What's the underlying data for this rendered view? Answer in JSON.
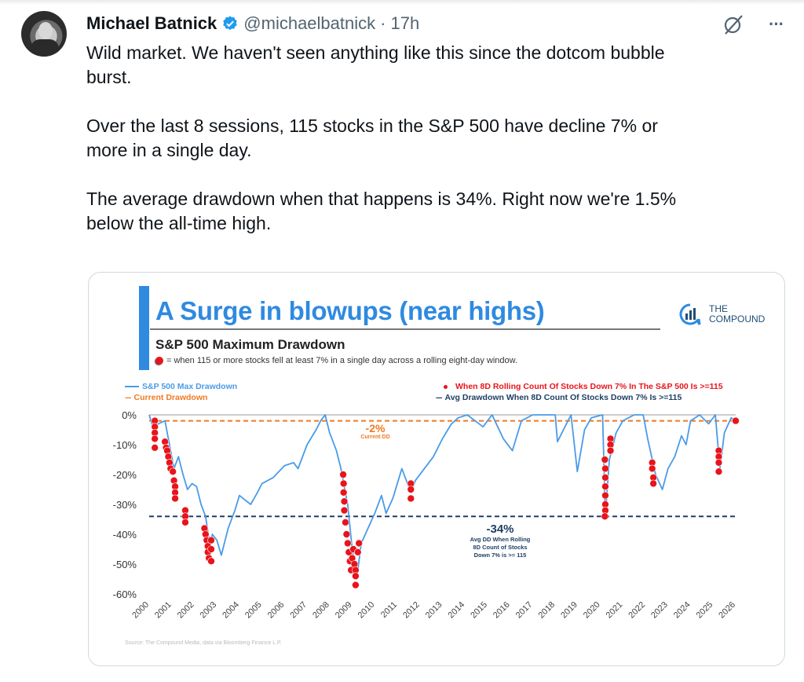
{
  "tweet": {
    "author_name": "Michael Batnick",
    "handle": "@michaelbatnick",
    "separator": "·",
    "time": "17h",
    "paragraphs": [
      [
        "Wild market. We haven't seen anything like this since the dotcom bubble",
        "burst."
      ],
      [
        "Over the last 8 sessions, 115 stocks in the S&P 500 have decline 7% or",
        "more in a single day."
      ],
      [
        "The average drawdown when that happens is 34%. Right now we're 1.5%",
        "below the all-time high."
      ]
    ],
    "icons": {
      "verified": "verified-badge-icon",
      "grok": "grok-icon",
      "more": "more-icon"
    },
    "more_label": "···"
  },
  "image": {
    "title": "A Surge in blowups (near highs)",
    "logo": {
      "line1": "THE",
      "line2": "COMPOUND"
    },
    "subtitle": "S&P 500 Maximum Drawdown",
    "note": "= when 115 or more stocks fell at least 7% in a single day across a rolling eight-day window.",
    "source": "Source: The Compound Media, data via Bloomberg Finance L.P."
  },
  "chart_data": {
    "type": "line",
    "title": "S&P 500 Maximum Drawdown",
    "ylim": [
      -60,
      0
    ],
    "xlim": [
      2000,
      2026
    ],
    "yticks": [
      "0%",
      "-10%",
      "-20%",
      "-30%",
      "-40%",
      "-50%",
      "-60%"
    ],
    "ytick_values": [
      0,
      -10,
      -20,
      -30,
      -40,
      -50,
      -60
    ],
    "xticks": [
      "2000",
      "2001",
      "2002",
      "2003",
      "2004",
      "2005",
      "2006",
      "2007",
      "2008",
      "2009",
      "2010",
      "2011",
      "2012",
      "2013",
      "2014",
      "2015",
      "2016",
      "2017",
      "2018",
      "2019",
      "2020",
      "2021",
      "2022",
      "2023",
      "2024",
      "2025",
      "2026"
    ],
    "legend": {
      "line": "S&P 500 Max Drawdown",
      "current": "Current Drawdown",
      "dots": "When 8D Rolling Count Of Stocks Down 7% In The S&P 500 Is >=115",
      "avg": "Avg Drawdown When 8D Count Of Stocks Down 7% Is >=115"
    },
    "colors": {
      "line": "#4a9be8",
      "current": "#f07a22",
      "avg": "#1f3f64",
      "dots": "#e8141b"
    },
    "series": {
      "x": [
        2000.0,
        2000.2,
        2000.4,
        2000.7,
        2000.9,
        2001.1,
        2001.3,
        2001.5,
        2001.7,
        2001.9,
        2002.1,
        2002.3,
        2002.5,
        2002.7,
        2002.8,
        2003.0,
        2003.2,
        2003.5,
        2003.8,
        2004.0,
        2004.5,
        2004.8,
        2005.0,
        2005.5,
        2006.0,
        2006.4,
        2006.6,
        2007.0,
        2007.4,
        2007.6,
        2007.8,
        2008.0,
        2008.3,
        2008.5,
        2008.8,
        2009.0,
        2009.2,
        2009.4,
        2009.7,
        2010.0,
        2010.3,
        2010.5,
        2010.8,
        2011.2,
        2011.6,
        2011.8,
        2012.3,
        2012.6,
        2013.0,
        2013.4,
        2013.7,
        2014.1,
        2014.8,
        2015.2,
        2015.7,
        2016.1,
        2016.5,
        2017.0,
        2017.5,
        2018.0,
        2018.1,
        2018.5,
        2018.7,
        2018.98,
        2019.3,
        2019.6,
        2020.1,
        2020.22,
        2020.4,
        2020.7,
        2021.0,
        2021.5,
        2021.9,
        2022.1,
        2022.45,
        2022.75,
        2023.0,
        2023.3,
        2023.6,
        2023.8,
        2024.0,
        2024.4,
        2024.8,
        2025.1,
        2025.3,
        2025.5,
        2025.8,
        2026.0
      ],
      "y": [
        0,
        -5,
        -3,
        -2,
        -10,
        -18,
        -14,
        -20,
        -25,
        -23,
        -24,
        -30,
        -34,
        -44,
        -40,
        -42,
        -47,
        -38,
        -32,
        -27,
        -30,
        -26,
        -23,
        -21,
        -17,
        -16,
        -18,
        -10,
        -5,
        -2,
        0,
        -6,
        -12,
        -18,
        -30,
        -45,
        -55,
        -43,
        -38,
        -33,
        -27,
        -33,
        -28,
        -18,
        -26,
        -22,
        -17,
        -14,
        -8,
        -3,
        -1,
        0,
        -4,
        0,
        -8,
        -12,
        -2,
        0,
        0,
        0,
        -9,
        -3,
        0,
        -19,
        -5,
        -1,
        0,
        -34,
        -15,
        -6,
        -2,
        0,
        0,
        -8,
        -20,
        -25,
        -18,
        -14,
        -7,
        -10,
        -2,
        0,
        -3,
        0,
        -18,
        -6,
        -1,
        -2
      ]
    },
    "dots": [
      [
        2000.25,
        -2
      ],
      [
        2000.25,
        -4
      ],
      [
        2000.25,
        -6
      ],
      [
        2000.25,
        -8
      ],
      [
        2000.25,
        -11
      ],
      [
        2000.7,
        -9
      ],
      [
        2000.75,
        -11
      ],
      [
        2000.8,
        -12
      ],
      [
        2000.85,
        -14
      ],
      [
        2000.9,
        -16
      ],
      [
        2000.95,
        -18
      ],
      [
        2001.05,
        -19
      ],
      [
        2001.1,
        -22
      ],
      [
        2001.15,
        -24
      ],
      [
        2001.15,
        -26
      ],
      [
        2001.15,
        -28
      ],
      [
        2001.6,
        -32
      ],
      [
        2001.6,
        -34
      ],
      [
        2001.6,
        -36
      ],
      [
        2002.45,
        -38
      ],
      [
        2002.5,
        -40
      ],
      [
        2002.55,
        -42
      ],
      [
        2002.6,
        -44
      ],
      [
        2002.6,
        -46
      ],
      [
        2002.65,
        -48
      ],
      [
        2002.75,
        -42
      ],
      [
        2002.75,
        -45
      ],
      [
        2002.75,
        -49
      ],
      [
        2008.6,
        -20
      ],
      [
        2008.62,
        -23
      ],
      [
        2008.62,
        -26
      ],
      [
        2008.65,
        -29
      ],
      [
        2008.65,
        -32
      ],
      [
        2008.7,
        -36
      ],
      [
        2008.75,
        -40
      ],
      [
        2008.8,
        -43
      ],
      [
        2008.85,
        -46
      ],
      [
        2008.9,
        -49
      ],
      [
        2008.95,
        -52
      ],
      [
        2009.0,
        -48
      ],
      [
        2009.05,
        -45
      ],
      [
        2009.1,
        -50
      ],
      [
        2009.15,
        -52
      ],
      [
        2009.15,
        -54
      ],
      [
        2009.15,
        -57
      ],
      [
        2009.25,
        -46
      ],
      [
        2009.3,
        -43
      ],
      [
        2011.6,
        -23
      ],
      [
        2011.6,
        -25
      ],
      [
        2011.6,
        -28
      ],
      [
        2020.2,
        -15
      ],
      [
        2020.22,
        -18
      ],
      [
        2020.22,
        -21
      ],
      [
        2020.22,
        -24
      ],
      [
        2020.22,
        -27
      ],
      [
        2020.22,
        -30
      ],
      [
        2020.22,
        -32
      ],
      [
        2020.2,
        -34
      ],
      [
        2020.45,
        -8
      ],
      [
        2020.45,
        -10
      ],
      [
        2020.45,
        -12
      ],
      [
        2022.3,
        -16
      ],
      [
        2022.3,
        -18
      ],
      [
        2022.35,
        -21
      ],
      [
        2022.35,
        -23
      ],
      [
        2025.25,
        -12
      ],
      [
        2025.25,
        -14
      ],
      [
        2025.25,
        -16
      ],
      [
        2025.25,
        -19
      ],
      [
        2026.0,
        -2
      ]
    ],
    "current_drawdown": -2,
    "avg_drawdown": -34,
    "annotations": {
      "current_value": "-2%",
      "current_label": "Current DD",
      "avg_value": "-34%",
      "avg_lines": [
        "Avg DD When Rolling",
        "8D Count of Stocks",
        "Down 7% is >= 115"
      ]
    }
  }
}
